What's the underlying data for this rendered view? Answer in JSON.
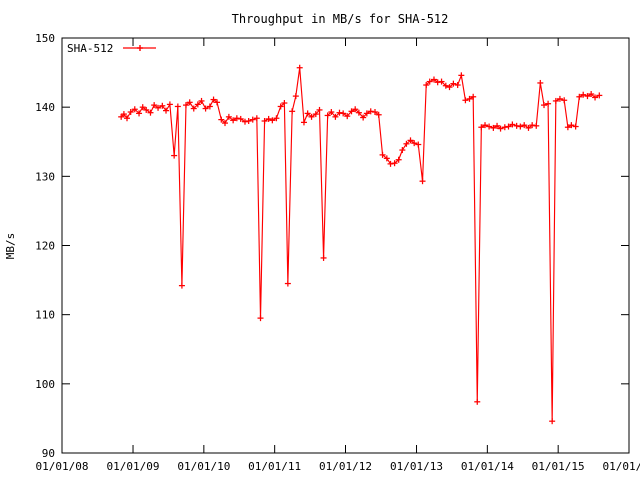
{
  "chart_data": {
    "type": "line",
    "title": "Throughput in MB/s for SHA-512",
    "xlabel": "",
    "ylabel": "MB/s",
    "xlim": [
      "01/01/08",
      "01/01/16"
    ],
    "ylim": [
      90,
      150
    ],
    "xticks": [
      "01/01/08",
      "01/01/09",
      "01/01/10",
      "01/01/11",
      "01/01/12",
      "01/01/13",
      "01/01/14",
      "01/01/15",
      "01/01/16"
    ],
    "yticks": [
      90,
      100,
      110,
      120,
      130,
      140,
      150
    ],
    "grid": false,
    "legend": {
      "placement": "top-left",
      "entries": [
        "SHA-512"
      ]
    },
    "series": [
      {
        "name": "SHA-512",
        "color": "#ff0000",
        "marker": "plus",
        "x": [
          "2008-11-01",
          "2008-11-15",
          "2008-12-01",
          "2008-12-20",
          "2009-01-10",
          "2009-02-01",
          "2009-02-20",
          "2009-03-10",
          "2009-04-01",
          "2009-04-20",
          "2009-05-10",
          "2009-06-01",
          "2009-06-20",
          "2009-07-10",
          "2009-08-01",
          "2009-08-20",
          "2009-09-10",
          "2009-10-01",
          "2009-10-20",
          "2009-11-10",
          "2009-12-01",
          "2009-12-20",
          "2010-01-10",
          "2010-02-01",
          "2010-02-20",
          "2010-03-10",
          "2010-04-01",
          "2010-04-20",
          "2010-05-10",
          "2010-06-01",
          "2010-06-20",
          "2010-07-10",
          "2010-08-01",
          "2010-08-20",
          "2010-09-10",
          "2010-10-01",
          "2010-10-20",
          "2010-11-10",
          "2010-12-01",
          "2010-12-20",
          "2011-01-10",
          "2011-02-01",
          "2011-02-20",
          "2011-03-10",
          "2011-04-01",
          "2011-04-20",
          "2011-05-10",
          "2011-06-01",
          "2011-06-20",
          "2011-07-10",
          "2011-08-01",
          "2011-08-20",
          "2011-09-10",
          "2011-10-01",
          "2011-10-20",
          "2011-11-10",
          "2011-12-01",
          "2011-12-20",
          "2012-01-10",
          "2012-02-01",
          "2012-02-20",
          "2012-03-10",
          "2012-04-01",
          "2012-04-20",
          "2012-05-10",
          "2012-06-01",
          "2012-06-20",
          "2012-07-10",
          "2012-08-01",
          "2012-08-20",
          "2012-09-10",
          "2012-10-01",
          "2012-10-20",
          "2012-11-10",
          "2012-12-01",
          "2012-12-20",
          "2013-01-10",
          "2013-02-01",
          "2013-02-20",
          "2013-03-10",
          "2013-04-01",
          "2013-04-20",
          "2013-05-10",
          "2013-06-01",
          "2013-06-20",
          "2013-07-10",
          "2013-08-01",
          "2013-08-20",
          "2013-09-10",
          "2013-10-01",
          "2013-10-20",
          "2013-11-10",
          "2013-12-01",
          "2013-12-20",
          "2014-01-10",
          "2014-02-01",
          "2014-02-20",
          "2014-03-10",
          "2014-04-01",
          "2014-04-20",
          "2014-05-10",
          "2014-06-01",
          "2014-06-20",
          "2014-07-10",
          "2014-08-01",
          "2014-08-20",
          "2014-09-10",
          "2014-10-01",
          "2014-10-20",
          "2014-11-10",
          "2014-12-01",
          "2014-12-20",
          "2015-01-10",
          "2015-02-01",
          "2015-02-20",
          "2015-03-10",
          "2015-04-01",
          "2015-04-20",
          "2015-05-10",
          "2015-06-01",
          "2015-06-20",
          "2015-07-10",
          "2015-08-01"
        ],
        "values": [
          138.6,
          139.0,
          138.4,
          139.3,
          139.7,
          139.1,
          140.0,
          139.6,
          139.2,
          140.3,
          139.9,
          140.2,
          139.5,
          140.4,
          133.0,
          140.1,
          114.2,
          140.3,
          140.7,
          139.8,
          140.4,
          140.9,
          139.8,
          140.1,
          141.1,
          140.7,
          138.2,
          137.7,
          138.6,
          138.1,
          138.4,
          138.3,
          137.9,
          138.0,
          138.2,
          138.4,
          109.5,
          138.0,
          138.3,
          138.1,
          138.4,
          140.1,
          140.6,
          114.5,
          139.4,
          141.6,
          145.7,
          137.8,
          139.1,
          138.6,
          139.0,
          139.6,
          118.2,
          138.8,
          139.3,
          138.6,
          139.2,
          139.1,
          138.7,
          139.4,
          139.7,
          139.2,
          138.5,
          139.1,
          139.4,
          139.3,
          138.9,
          133.1,
          132.6,
          131.8,
          131.9,
          132.4,
          133.8,
          134.7,
          135.2,
          134.8,
          134.6,
          129.3,
          143.2,
          143.7,
          144.0,
          143.6,
          143.7,
          143.1,
          142.9,
          143.4,
          143.2,
          144.6,
          141.0,
          141.2,
          141.5,
          97.4,
          137.1,
          137.4,
          137.2,
          137.0,
          137.3,
          136.9,
          137.1,
          137.2,
          137.5,
          137.3,
          137.2,
          137.4,
          137.0,
          137.4,
          137.3,
          143.5,
          140.3,
          140.5,
          94.6,
          140.9,
          141.2,
          141.0,
          137.1,
          137.4,
          137.2,
          141.5,
          141.8,
          141.6,
          141.9,
          141.4,
          141.7
        ]
      }
    ]
  }
}
